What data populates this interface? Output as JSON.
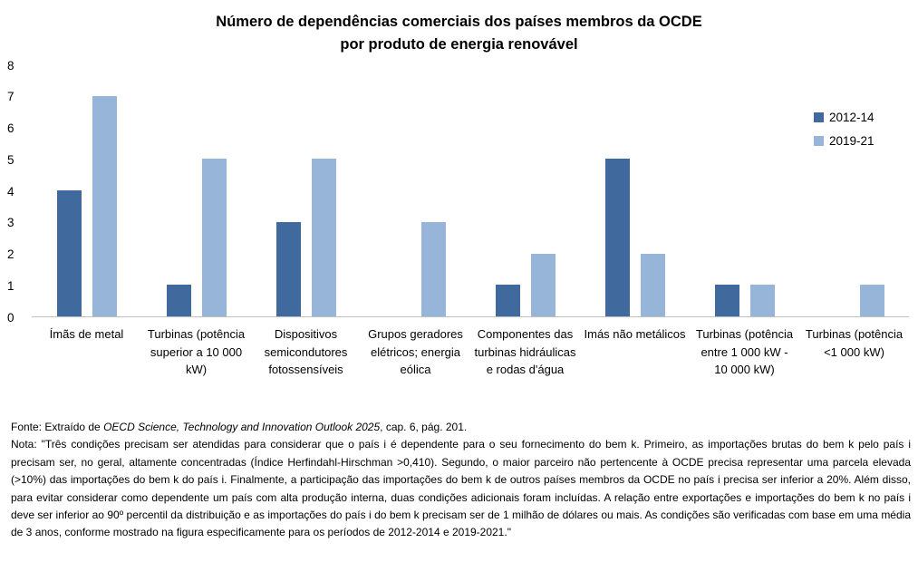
{
  "title": {
    "line1": "Número de dependências comerciais dos países membros da OCDE",
    "line2": "por produto de energia renovável"
  },
  "chart_data": {
    "type": "bar",
    "categories": [
      "Ímãs de metal",
      "Turbinas (potência superior a 10 000 kW)",
      "Dispositivos semicondutores fotossensíveis",
      "Grupos geradores elétricos; energia eólica",
      "Componentes das turbinas hidráulicas e rodas d'água",
      "Imás não metálicos",
      "Turbinas (potência entre 1 000 kW - 10 000 kW)",
      "Turbinas (potência <1 000 kW)"
    ],
    "series": [
      {
        "name": "2012-14",
        "color": "#40699D",
        "values": [
          4,
          1,
          3,
          0,
          1,
          5,
          1,
          0
        ]
      },
      {
        "name": "2019-21",
        "color": "#97B5D9",
        "values": [
          7,
          5,
          5,
          3,
          2,
          2,
          1,
          1
        ]
      }
    ],
    "title": "Número de dependências comerciais dos países membros da OCDE por produto de energia renovável",
    "xlabel": "",
    "ylabel": "",
    "ylim": [
      0,
      8
    ],
    "yticks": [
      0,
      1,
      2,
      3,
      4,
      5,
      6,
      7,
      8
    ],
    "grid": false,
    "legend_position": "right-top",
    "axis_line_color": "#BFBFBF"
  },
  "footer": {
    "fonte_prefix": "Fonte: Extraído de ",
    "fonte_italic": "OECD Science, Technology and Innovation Outlook 2025",
    "fonte_suffix": ", cap. 6, pág. 201.",
    "nota": "Nota: \"Três condições precisam ser atendidas para considerar que o país i é dependente para o seu fornecimento do bem k. Primeiro, as importações brutas do bem k pelo país i precisam ser, no geral, altamente concentradas (Índice Herfindahl-Hirschman >0,410). Segundo, o maior parceiro não pertencente à OCDE precisa representar uma parcela elevada (>10%) das importações do bem k do país i. Finalmente, a participação das importações do bem k de outros países membros da OCDE no país i precisa ser inferior a 20%. Além disso, para evitar considerar como dependente um país com alta produção interna, duas condições adicionais foram incluídas. A relação entre exportações e importações do bem k no país i deve ser inferior ao 90º percentil da distribuição e as importações do país i do bem k precisam ser de 1 milhão de dólares ou mais. As condições são verificadas com base em uma média de 3 anos, conforme mostrado na figura especificamente para os períodos de 2012-2014 e 2019-2021.\""
  }
}
